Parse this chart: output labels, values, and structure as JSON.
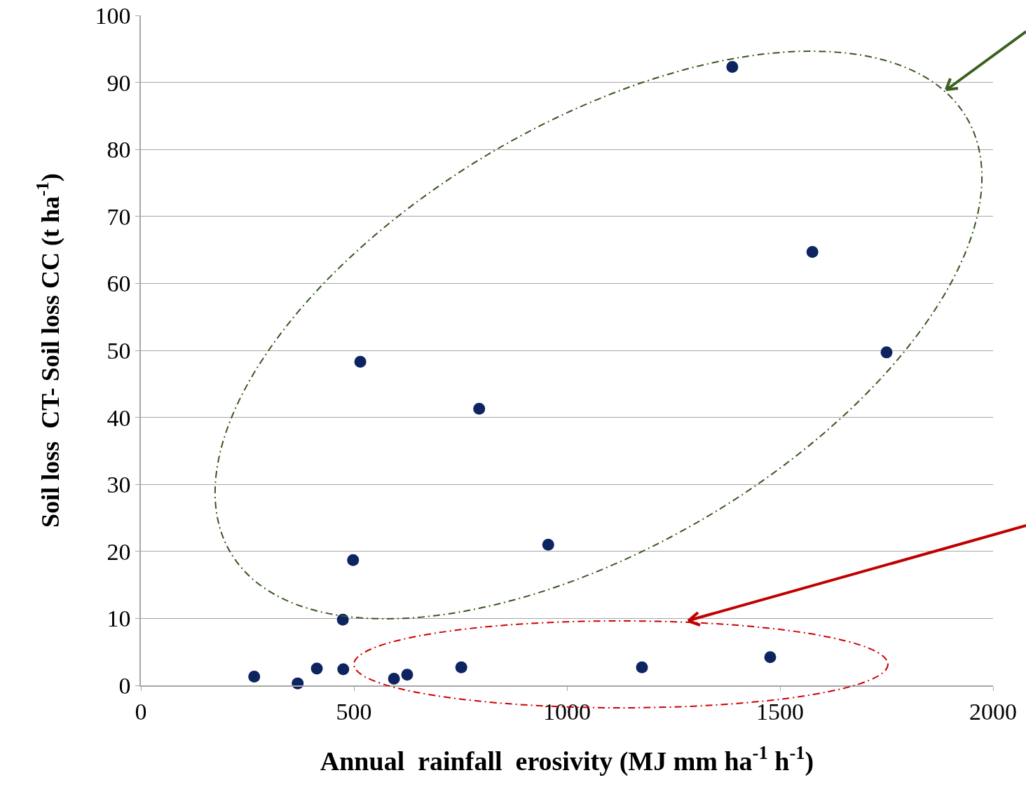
{
  "chart_data": {
    "type": "scatter",
    "xlabel": "Annual  rainfall  erosivity (MJ mm ha$^{-1}$ h$^{-1}$)",
    "ylabel": "Soil loss  CT- Soil loss CC (t ha$^{-1}$)",
    "x": [
      266,
      368,
      413,
      475,
      474,
      498,
      515,
      594,
      625,
      752,
      794,
      956,
      1176,
      1388,
      1477,
      1576,
      1750
    ],
    "series": [
      {
        "color": "#0d2460",
        "values": [
          1.3,
          0.3,
          2.5,
          2.4,
          9.8,
          18.7,
          48.3,
          1.0,
          1.6,
          2.7,
          41.3,
          21.0,
          2.7,
          92.3,
          4.2,
          64.7,
          49.7
        ]
      }
    ],
    "xlim": [
      0,
      2000
    ],
    "xticks": [
      0,
      500,
      1000,
      1500,
      2000
    ],
    "ylim": [
      0,
      100
    ],
    "yticks": [
      0,
      10,
      20,
      30,
      40,
      50,
      60,
      70,
      80,
      90,
      100
    ],
    "grid": "y",
    "marker": "circle"
  }
}
